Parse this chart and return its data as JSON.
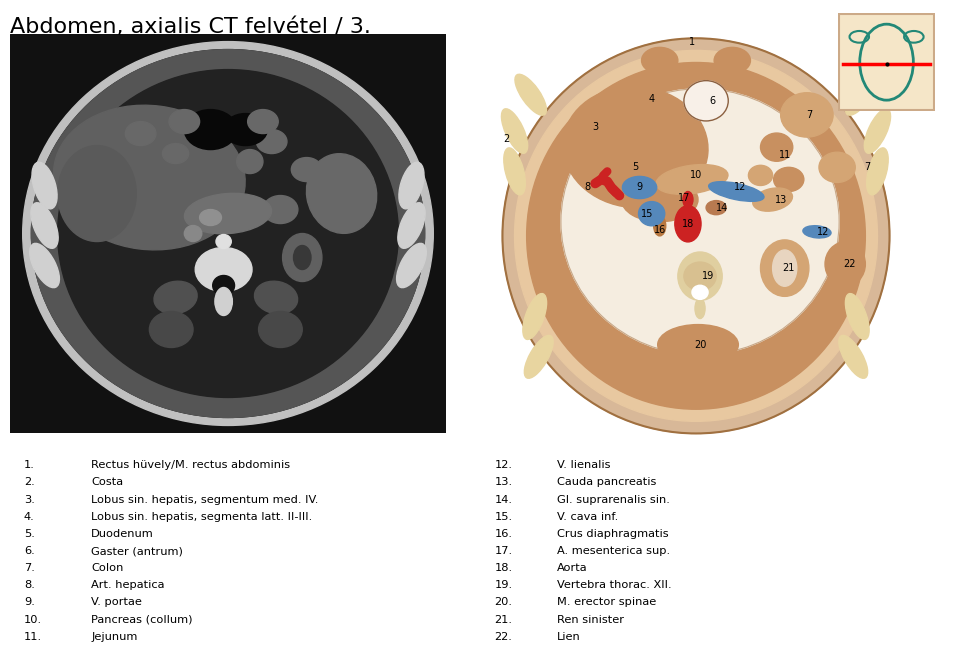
{
  "title": "Abdomen, axialis CT felvétel / 3.",
  "title_fontsize": 16,
  "bg_color": "#ffffff",
  "legend_left": [
    [
      "1.",
      "Rectus hüvely/M. rectus abdominis"
    ],
    [
      "2.",
      "Costa"
    ],
    [
      "3.",
      "Lobus sin. hepatis, segmentum med. IV."
    ],
    [
      "4.",
      "Lobus sin. hepatis, segmenta latt. II-III."
    ],
    [
      "5.",
      "Duodenum"
    ],
    [
      "6.",
      "Gaster (antrum)"
    ],
    [
      "7.",
      "Colon"
    ],
    [
      "8.",
      "Art. hepatica"
    ],
    [
      "9.",
      "V. portae"
    ],
    [
      "10.",
      "Pancreas (collum)"
    ],
    [
      "11.",
      "Jejunum"
    ]
  ],
  "legend_right": [
    [
      "12.",
      "V. lienalis"
    ],
    [
      "13.",
      "Cauda pancreatis"
    ],
    [
      "14.",
      "Gl. suprarenalis sin."
    ],
    [
      "15.",
      "V. cava inf."
    ],
    [
      "16.",
      "Crus diaphragmatis"
    ],
    [
      "17.",
      "A. mesenterica sup."
    ],
    [
      "18.",
      "Aorta"
    ],
    [
      "19.",
      "Vertebra thorac. XII."
    ],
    [
      "20.",
      "M. erector spinae"
    ],
    [
      "21.",
      "Ren sinister"
    ],
    [
      "22.",
      "Lien"
    ]
  ],
  "c_skin_outer": "#c8a882",
  "c_skin_inner": "#d4b896",
  "c_muscle": "#c8956c",
  "c_muscle_dark": "#b8845c",
  "c_organ": "#c8956c",
  "c_organ_light": "#d4a574",
  "c_fat": "#e8d5b0",
  "c_bone": "#e8d5a0",
  "c_cavity": "#f5ede0",
  "c_blue": "#5588bb",
  "c_red": "#cc2222",
  "c_white": "#ffffff",
  "c_outline": "#8b6040",
  "c_inset_bg": "#f5e6c8",
  "c_inset_border": "#ccaa88",
  "c_teal": "#228877"
}
